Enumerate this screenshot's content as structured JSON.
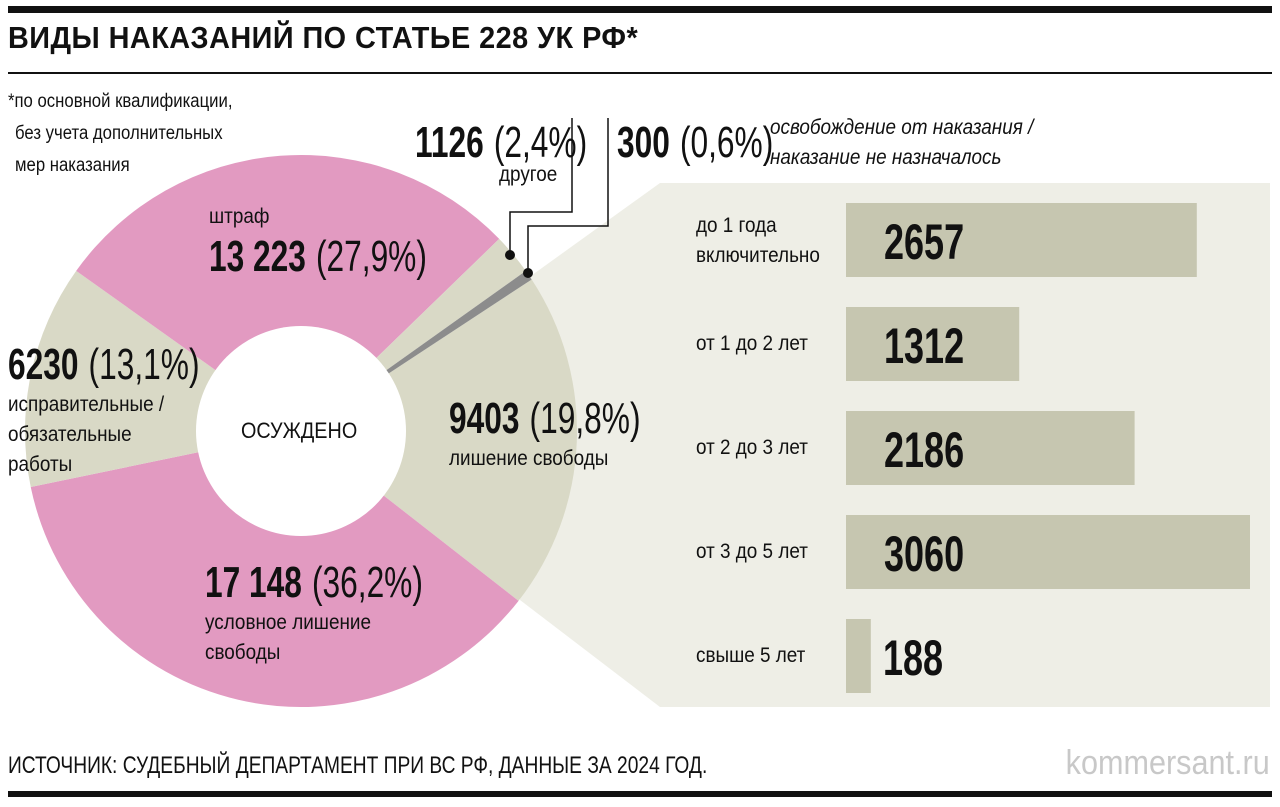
{
  "title": "ВИДЫ НАКАЗАНИЙ ПО СТАТЬЕ 228 УК РФ*",
  "footnote": [
    "*по основной квалификации,",
    "без учета дополнительных",
    "мер наказания"
  ],
  "source": "ИСТОЧНИК: СУДЕБНЫЙ ДЕПАРТАМЕНТ ПРИ ВС РФ, ДАННЫЕ ЗА 2024 ГОД.",
  "brand": "kommersant.ru",
  "colors": {
    "pink": "#e29ac1",
    "beige": "#d9d9c6",
    "gray": "#8c8c8c",
    "panel": "#eeeee6",
    "bar": "#c6c6b0"
  },
  "chart_data": [
    {
      "type": "pie",
      "center_label": "ОСУЖДЕНО",
      "slices": [
        {
          "name": "лишение свободы",
          "value": 9403,
          "percent_label": "(19,8%)",
          "percent": 19.8,
          "color": "#d9d9c6"
        },
        {
          "name": "условное лишение свободы",
          "value": 17148,
          "value_label": "17 148",
          "percent_label": "(36,2%)",
          "percent": 36.2,
          "color": "#e29ac1"
        },
        {
          "name": "исправительные / обязательные работы",
          "value": 6230,
          "percent_label": "(13,1%)",
          "percent": 13.1,
          "color": "#d9d9c6"
        },
        {
          "name": "штраф",
          "value": 13223,
          "value_label": "13 223",
          "percent_label": "(27,9%)",
          "percent": 27.9,
          "color": "#e29ac1"
        },
        {
          "name": "другое",
          "value": 1126,
          "percent_label": "(2,4%)",
          "percent": 2.4,
          "color": "#d9d9c6"
        },
        {
          "name": "освобождение от наказания / наказание не назначалось",
          "value": 300,
          "percent_label": "(0,6%)",
          "percent": 0.6,
          "color": "#8c8c8c"
        }
      ]
    },
    {
      "type": "bar",
      "orientation": "horizontal",
      "categories": [
        "до 1 года включительно",
        "от 1 до 2 лет",
        "от 2 до 3 лет",
        "от 3 до 5 лет",
        "свыше 5 лет"
      ],
      "values": [
        2657,
        1312,
        2186,
        3060,
        188
      ]
    }
  ]
}
